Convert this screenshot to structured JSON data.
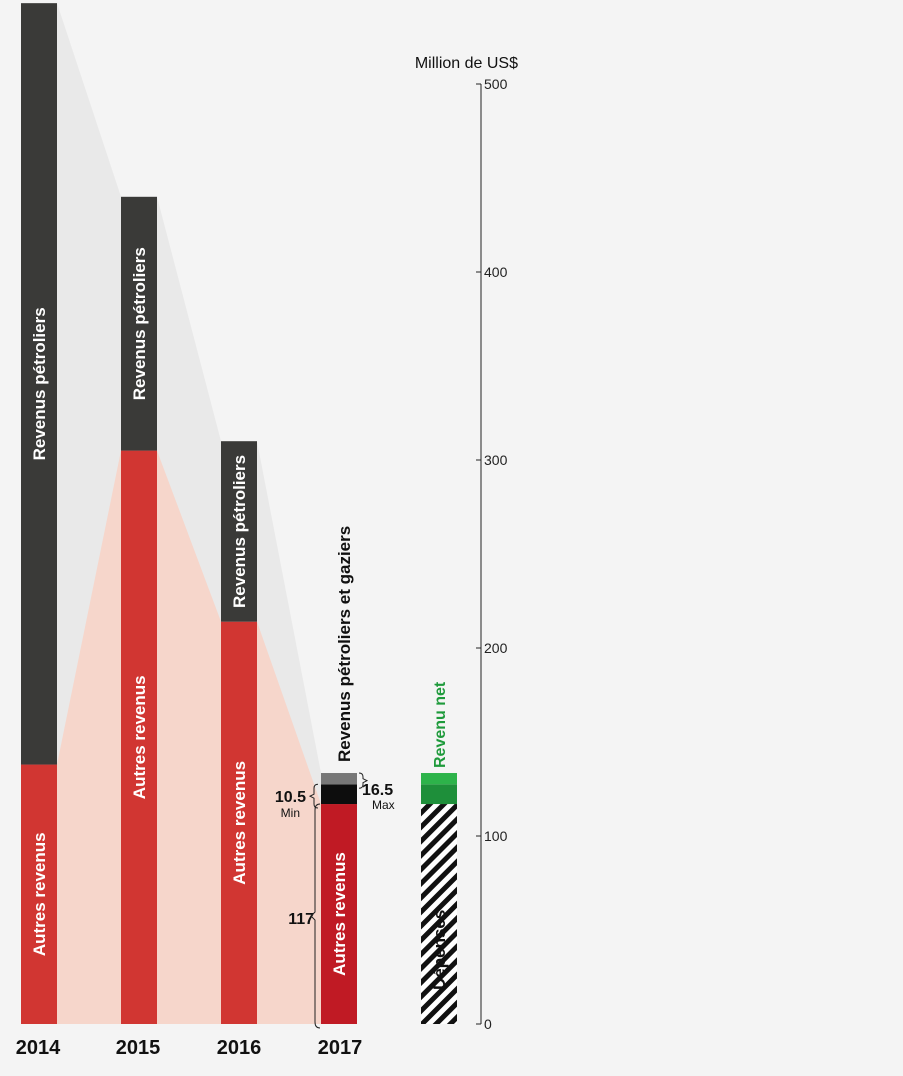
{
  "chart_data": {
    "type": "bar",
    "unit_label": "Million de US$",
    "ylim": [
      0,
      500
    ],
    "y_ticks": [
      "0",
      "100",
      "200",
      "300",
      "400",
      "500"
    ],
    "categories": [
      "2014",
      "2015",
      "2016",
      "2017"
    ],
    "series": [
      {
        "name": "Autres revenus",
        "values": [
          138,
          305,
          214,
          117
        ],
        "color": "#d13632"
      },
      {
        "name": "Revenus pétroliers",
        "values": [
          405,
          135,
          96,
          null
        ],
        "color": "#3a3a38"
      }
    ],
    "oil_gas_2017": {
      "label": "Revenus pétroliers et gaziers",
      "min_label": "Min",
      "min_value": 10.5,
      "max_label": "Max",
      "max_value": 16.5,
      "min_display": "10.5",
      "max_display": "16.5",
      "base_display": "117",
      "color_min": "#0d0d0d",
      "color_extra": "#777777",
      "base_color": "#c01a24"
    },
    "net_revenue": {
      "label": "Revenu net",
      "min_value": 10.5,
      "max_value": 16.5,
      "color_min": "#1e8f3a",
      "color_extra": "#2db34a"
    },
    "expenses": {
      "label": "Dépenses",
      "value": 117
    },
    "labels": {
      "other_revenue": "Autres revenus",
      "oil_revenue": "Revenus pétroliers"
    }
  }
}
